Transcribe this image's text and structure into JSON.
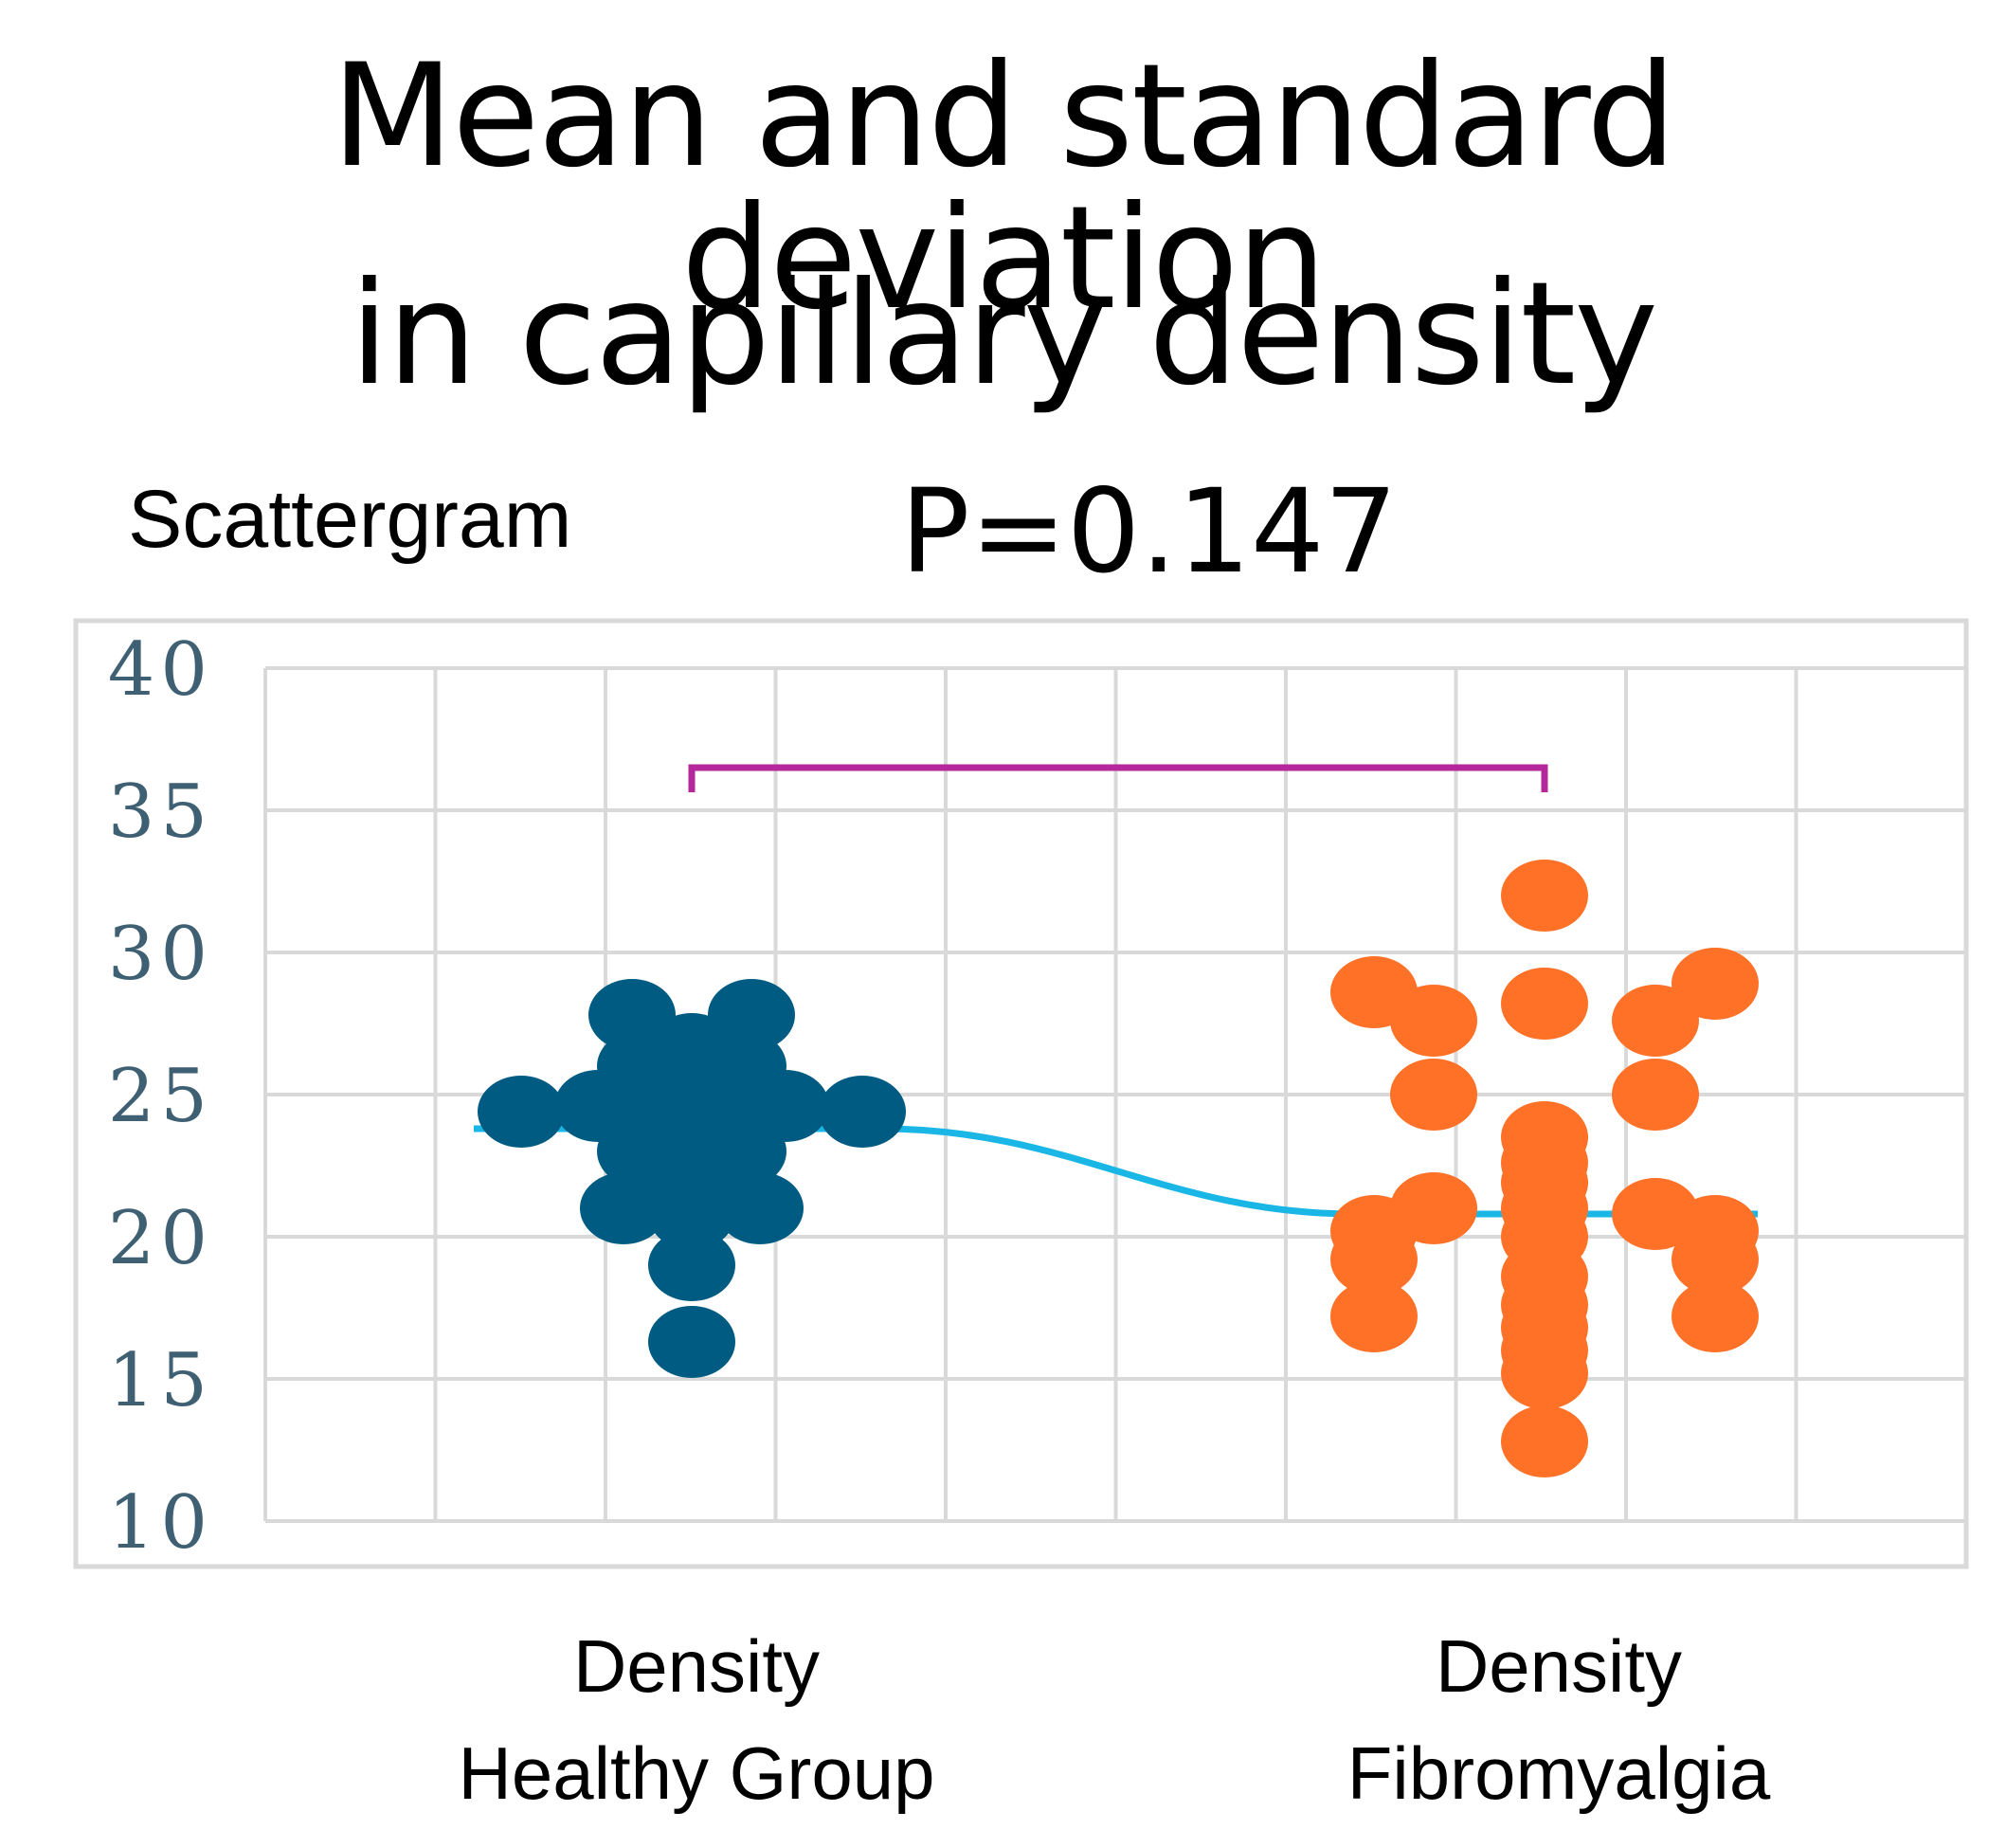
{
  "title": [
    "Mean and standard deviation",
    "in capillary density"
  ],
  "subtitle": "Scattergram",
  "p_value": "P=0.147",
  "colors": {
    "healthy": "#005B82",
    "fibromyalgia": "#FF7127",
    "mean_line": "#1AB7E6",
    "bracket": "#B5289B",
    "grid": "#D9D9D9",
    "tick_label": "#3F5F73"
  },
  "chart_data": {
    "type": "scatter",
    "title": "Mean and standard deviation in capillary density",
    "subtitle": "Scattergram",
    "annotation": "P=0.147",
    "ylim": [
      10,
      40
    ],
    "yticks": [
      10,
      15,
      20,
      25,
      30,
      35,
      40
    ],
    "grid": true,
    "categories": [
      {
        "line1": "Density",
        "line2": "Healthy Group"
      },
      {
        "line1": "Density",
        "line2": "Fibromyalgia"
      }
    ],
    "series": [
      {
        "name": "Density Healthy Group",
        "mean": 23.8,
        "points": [
          {
            "offset": -1.0,
            "y": 24.4
          },
          {
            "offset": 1.0,
            "y": 24.4
          },
          {
            "offset": -0.35,
            "y": 27.8
          },
          {
            "offset": 0.35,
            "y": 27.8
          },
          {
            "offset": 0.0,
            "y": 26.6
          },
          {
            "offset": -0.3,
            "y": 26.0
          },
          {
            "offset": 0.3,
            "y": 26.0
          },
          {
            "offset": -0.55,
            "y": 24.6
          },
          {
            "offset": 0.55,
            "y": 24.6
          },
          {
            "offset": -0.2,
            "y": 24.8
          },
          {
            "offset": 0.2,
            "y": 24.8
          },
          {
            "offset": 0.0,
            "y": 24.0
          },
          {
            "offset": -0.15,
            "y": 23.6
          },
          {
            "offset": 0.15,
            "y": 23.6
          },
          {
            "offset": -0.3,
            "y": 23.0
          },
          {
            "offset": 0.3,
            "y": 23.0
          },
          {
            "offset": 0.0,
            "y": 22.4
          },
          {
            "offset": -0.15,
            "y": 22.2
          },
          {
            "offset": 0.15,
            "y": 22.2
          },
          {
            "offset": -0.4,
            "y": 21.0
          },
          {
            "offset": 0.4,
            "y": 21.0
          },
          {
            "offset": 0.0,
            "y": 20.8
          },
          {
            "offset": 0.0,
            "y": 19.0
          },
          {
            "offset": 0.0,
            "y": 16.3
          }
        ]
      },
      {
        "name": "Density Fibromyalgia",
        "mean": 20.8,
        "points": [
          {
            "offset": 0.0,
            "y": 32.0
          },
          {
            "offset": -1.0,
            "y": 28.6
          },
          {
            "offset": 1.0,
            "y": 28.9
          },
          {
            "offset": 0.0,
            "y": 28.2
          },
          {
            "offset": -0.65,
            "y": 27.6
          },
          {
            "offset": 0.65,
            "y": 27.6
          },
          {
            "offset": -0.65,
            "y": 25.0
          },
          {
            "offset": 0.65,
            "y": 25.0
          },
          {
            "offset": 0.0,
            "y": 23.5
          },
          {
            "offset": 0.0,
            "y": 22.6
          },
          {
            "offset": 0.0,
            "y": 21.9
          },
          {
            "offset": -0.65,
            "y": 21.0
          },
          {
            "offset": 0.65,
            "y": 20.8
          },
          {
            "offset": 0.0,
            "y": 21.0
          },
          {
            "offset": -1.0,
            "y": 20.2
          },
          {
            "offset": 1.0,
            "y": 20.2
          },
          {
            "offset": 0.0,
            "y": 20.0
          },
          {
            "offset": -1.0,
            "y": 19.2
          },
          {
            "offset": 1.0,
            "y": 19.2
          },
          {
            "offset": 0.0,
            "y": 18.6
          },
          {
            "offset": 0.0,
            "y": 17.6
          },
          {
            "offset": -1.0,
            "y": 17.2
          },
          {
            "offset": 1.0,
            "y": 17.2
          },
          {
            "offset": 0.0,
            "y": 16.8
          },
          {
            "offset": 0.0,
            "y": 16.0
          },
          {
            "offset": 0.0,
            "y": 15.2
          },
          {
            "offset": 0.0,
            "y": 12.8
          }
        ]
      }
    ],
    "significance_bracket": {
      "from": 0,
      "to": 1,
      "y": 36.5
    }
  }
}
